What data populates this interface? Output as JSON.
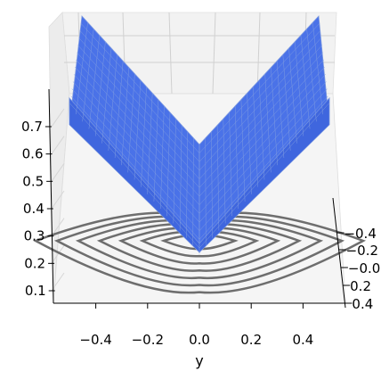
{
  "chart_data": {
    "type": "surface3d",
    "title": "",
    "function": "z = |x| + |y| (V-shaped surface)",
    "x_label": "y",
    "x_ticks": [
      "−0.4",
      "−0.2",
      "0.0",
      "0.2",
      "0.4"
    ],
    "x_tick_values": [
      -0.4,
      -0.2,
      0.0,
      0.2,
      0.4
    ],
    "depth_ticks": [
      "0.4",
      "0.2",
      "0.0",
      "0.2",
      "0.4"
    ],
    "z_ticks": [
      "0.1",
      "0.2",
      "0.3",
      "0.4",
      "0.5",
      "0.6",
      "0.7"
    ],
    "z_tick_values": [
      0.1,
      0.2,
      0.3,
      0.4,
      0.5,
      0.6,
      0.7
    ],
    "xlim": [
      -0.5,
      0.5
    ],
    "zlim": [
      0.05,
      0.78
    ],
    "surface_color": "#4a72e8",
    "surface_edge_color": "#7d9ae0",
    "contour_color": "#6e6e6e",
    "contour_levels": [
      0.07,
      0.14,
      0.21,
      0.28,
      0.35,
      0.42,
      0.49
    ],
    "grid": true
  }
}
